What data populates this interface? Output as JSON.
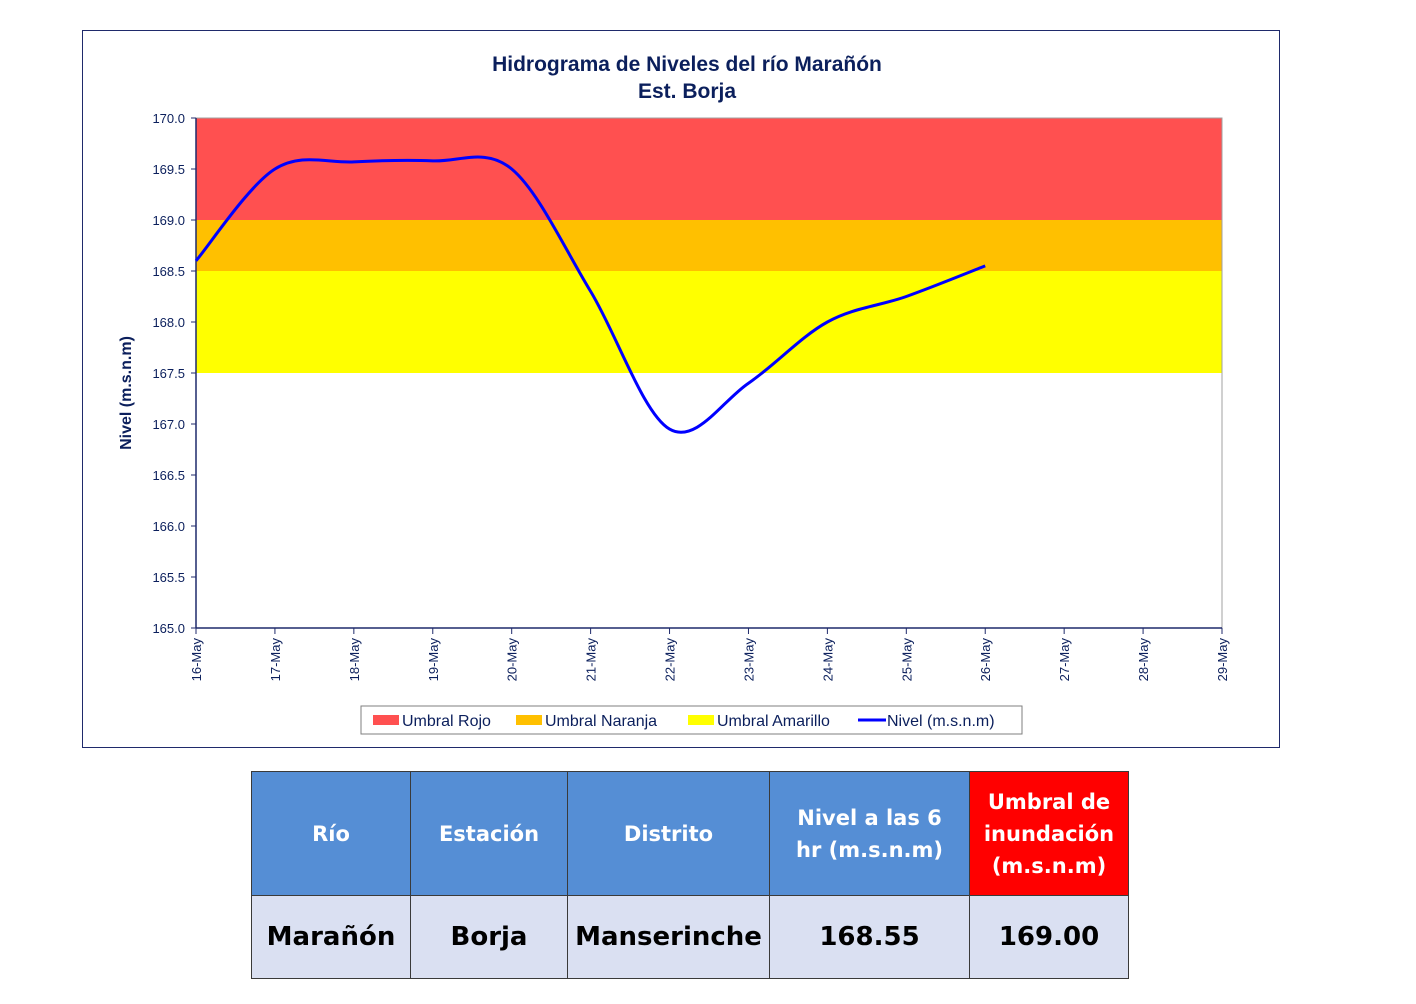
{
  "chart_data": {
    "type": "line",
    "title": "Hidrograma de Niveles del río Marañón",
    "subtitle": "Est. Borja",
    "xlabel": "",
    "ylabel": "Nivel (m.s.n.m)",
    "ylim": [
      165.0,
      170.0
    ],
    "y_ticks": [
      "165.0",
      "165.5",
      "166.0",
      "166.5",
      "167.0",
      "167.5",
      "168.0",
      "168.5",
      "169.0",
      "169.5",
      "170.0"
    ],
    "x_ticks": [
      "16-May",
      "17-May",
      "18-May",
      "19-May",
      "20-May",
      "21-May",
      "22-May",
      "23-May",
      "24-May",
      "25-May",
      "26-May",
      "27-May",
      "28-May",
      "29-May"
    ],
    "bands": [
      {
        "name": "Umbral Rojo",
        "from": 169.0,
        "to": 170.0,
        "color": "#ff5050"
      },
      {
        "name": "Umbral Naranja",
        "from": 168.5,
        "to": 169.0,
        "color": "#ffc000"
      },
      {
        "name": "Umbral Amarillo",
        "from": 167.5,
        "to": 168.5,
        "color": "#ffff00"
      }
    ],
    "series": [
      {
        "name": "Nivel (m.s.n.m)",
        "color": "#0000ff",
        "x": [
          "16-May",
          "17-May",
          "18-May",
          "19-May",
          "20-May",
          "21-May",
          "22-May",
          "23-May",
          "24-May",
          "25-May",
          "26-May"
        ],
        "values": [
          168.6,
          169.5,
          169.57,
          169.58,
          169.5,
          168.3,
          166.95,
          167.4,
          168.0,
          168.25,
          168.55
        ]
      }
    ],
    "legend": [
      "Umbral Rojo",
      "Umbral Naranja",
      "Umbral Amarillo",
      "Nivel (m.s.n.m)"
    ],
    "legend_position": "bottom",
    "grid": false
  },
  "table": {
    "headers": [
      "Río",
      "Estación",
      "Distrito",
      "Nivel a las 6 hr (m.s.n.m)",
      "Umbral de inundación (m.s.n.m)"
    ],
    "values": [
      "Marañón",
      "Borja",
      "Manserinche",
      "168.55",
      "169.00"
    ],
    "header_color": "#558ed5",
    "highlight_header_color": "#ff0000",
    "value_row_color": "#dae0f2"
  }
}
